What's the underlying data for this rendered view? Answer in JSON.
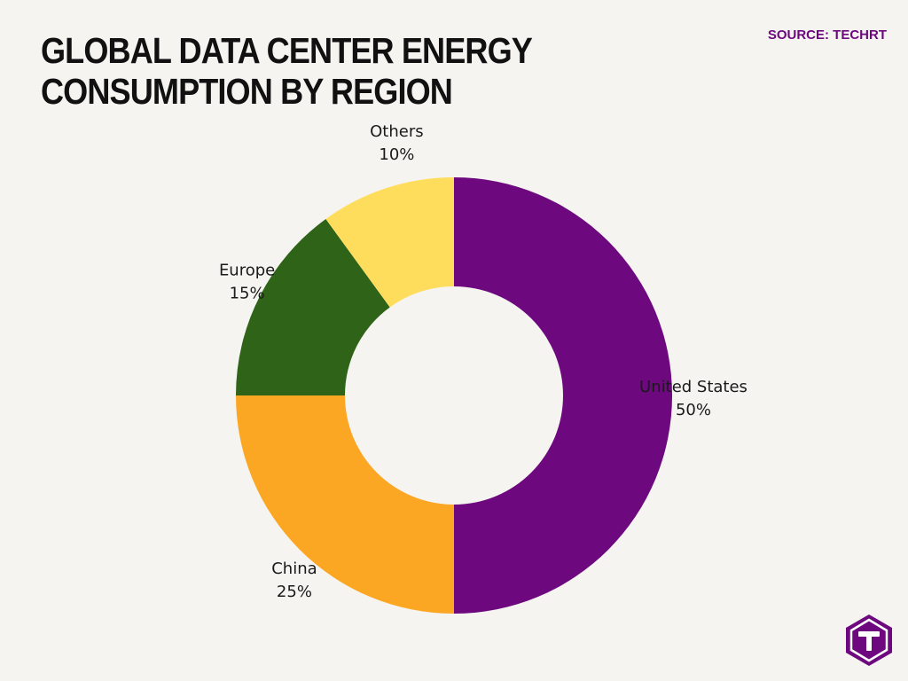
{
  "header": {
    "title": "GLOBAL DATA CENTER ENERGY CONSUMPTION BY REGION",
    "source": "SOURCE: TECHRT"
  },
  "colors": {
    "background": "#f5f4f0",
    "accent": "#6d087f"
  },
  "logo": {
    "icon": "techrt-t-logo-icon"
  },
  "chart_data": {
    "type": "pie",
    "variant": "donut",
    "title": "GLOBAL DATA CENTER ENERGY CONSUMPTION BY REGION",
    "start": "top",
    "direction": "clockwise",
    "legend": "none",
    "labels_outside": true,
    "slices": [
      {
        "name": "United States",
        "value": 50,
        "pct_label": "50%",
        "color": "#6d087f"
      },
      {
        "name": "China",
        "value": 25,
        "pct_label": "25%",
        "color": "#fca723"
      },
      {
        "name": "Europe",
        "value": 15,
        "pct_label": "15%",
        "color": "#2e6318"
      },
      {
        "name": "Others",
        "value": 10,
        "pct_label": "10%",
        "color": "#ffdd5c"
      }
    ]
  }
}
